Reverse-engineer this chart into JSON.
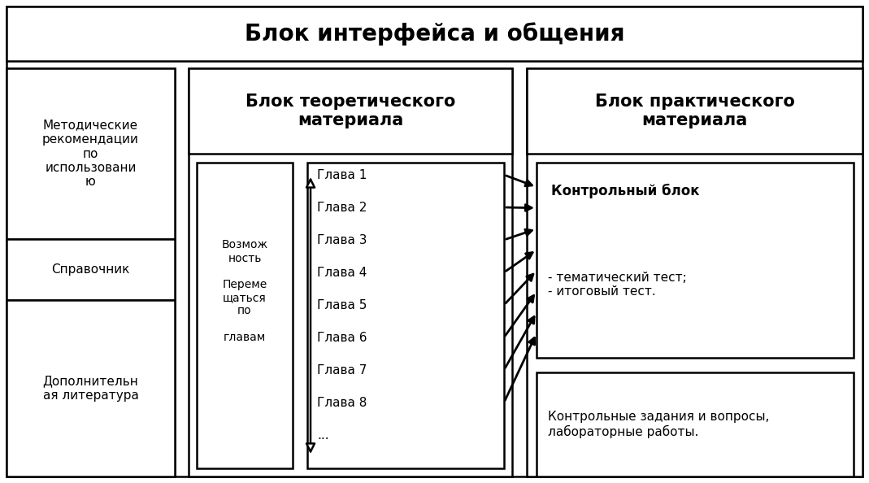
{
  "title": "Блок интерфейса и общения",
  "title_fontsize": 20,
  "bg_color": "#ffffff",
  "border_color": "#000000",
  "lw": 1.8,
  "left_items": [
    "Методические\nрекомендации\nпо\nиспользовани\nю",
    "Справочник",
    "Дополнительн\nая литература"
  ],
  "center_block_title": "Блок теоретического\nматериала",
  "center_nav_text": "Возмож\nность\n\nПереме\nщаться\nпо\n\nглавам",
  "chapters": [
    "Глава 1",
    "Глава 2",
    "Глава 3",
    "Глава 4",
    "Глава 5",
    "Глава 6",
    "Глава 7",
    "Глава 8",
    "..."
  ],
  "right_block_title": "Блок практического\nматериала",
  "control_block_title": "Контрольный блок",
  "control_block_items": "- тематический тест;\n- итоговый тест.",
  "bottom_right_text": "Контрольные задания и вопросы,\nлабораторные работы."
}
